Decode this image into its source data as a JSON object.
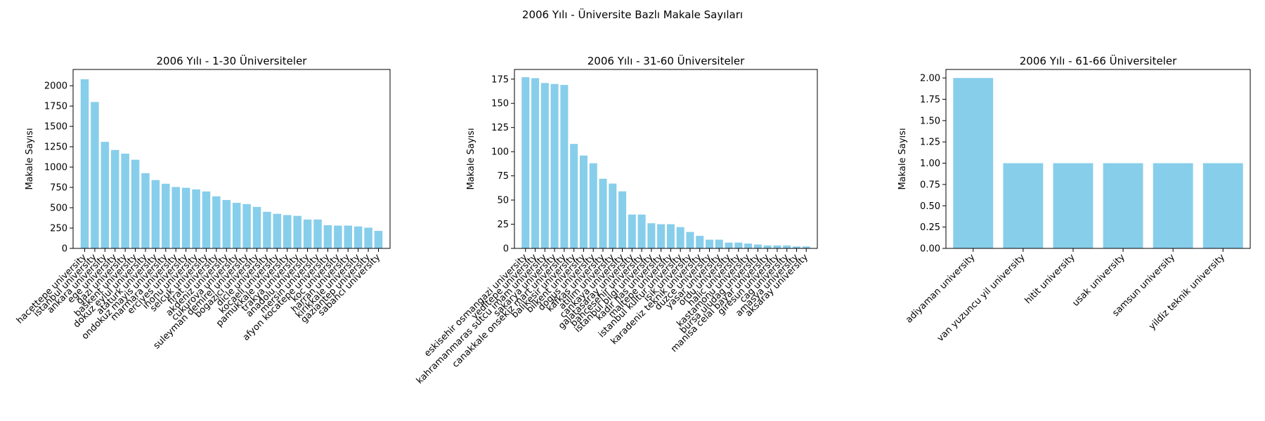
{
  "figure": {
    "suptitle": "2006 Yılı - Üniversite Bazlı Makale Sayıları"
  },
  "style": {
    "bar_color": "#87ceeb",
    "axis_color": "#000000",
    "background": "#ffffff"
  },
  "chart_data": [
    {
      "type": "bar",
      "title": "2006 Yılı - 1-30 Üniversiteler",
      "xlabel": "",
      "ylabel": "Makale Sayısı",
      "ylim": [
        0,
        2200
      ],
      "yticks": [
        0,
        250,
        500,
        750,
        1000,
        1250,
        1500,
        1750,
        2000
      ],
      "ytick_labels": [
        "0",
        "250",
        "500",
        "750",
        "1000",
        "1250",
        "1500",
        "1750",
        "2000"
      ],
      "grid": false,
      "categories": [
        "hacettepe university",
        "istanbul university",
        "ankara university",
        "ege university",
        "gazi university",
        "baskent university",
        "dokuz eylul university",
        "ataturk university",
        "ondokuz mayis university",
        "marmara university",
        "erciyes university",
        "inonu university",
        "selcuk university",
        "firat university",
        "akdeniz university",
        "cukurova university",
        "suleyman demirel university",
        "bogazici university",
        "dicle university",
        "kocaeli university",
        "pamukkale university",
        "trakya university",
        "anadolu university",
        "mersin university",
        "afyon kocatepe university",
        "koc university",
        "harran university",
        "kirikkale university",
        "gaziantep university",
        "sabanci university"
      ],
      "values": [
        2080,
        1800,
        1310,
        1210,
        1165,
        1090,
        925,
        840,
        795,
        755,
        745,
        725,
        700,
        640,
        595,
        560,
        545,
        510,
        450,
        425,
        410,
        400,
        355,
        355,
        285,
        280,
        280,
        270,
        255,
        215
      ]
    },
    {
      "type": "bar",
      "title": "2006 Yılı - 31-60 Üniversiteler",
      "xlabel": "",
      "ylabel": "Makale Sayısı",
      "ylim": [
        0,
        185
      ],
      "yticks": [
        0,
        25,
        50,
        75,
        100,
        125,
        150,
        175
      ],
      "ytick_labels": [
        "0",
        "25",
        "50",
        "75",
        "100",
        "125",
        "150",
        "175"
      ],
      "grid": false,
      "categories": [
        "eskisehir osmangazi university",
        "yeditepe university",
        "kahramanmaras sutcu imam university",
        "sakarya university",
        "canakkale onsekiz mart university",
        "balikesir university",
        "bilkent university",
        "dogus university",
        "kafkas university",
        "atilim university",
        "cankaya university",
        "galatasaray university",
        "bahcesehir university",
        "istanbul bilgi university",
        "kadir has university",
        "maltepe university",
        "istanbul kultur university",
        "isik university",
        "karadeniz teknik university",
        "duzce university",
        "yasar university",
        "ordu university",
        "halic university",
        "kastamonu university",
        "bursa uludag university",
        "manisa celal bayar university",
        "giresun university",
        "cag university",
        "amasya university",
        "aksaray university"
      ],
      "values": [
        177,
        176,
        171,
        170,
        169,
        108,
        96,
        88,
        72,
        67,
        59,
        35,
        35,
        26,
        25,
        25,
        22,
        17,
        13,
        9,
        9,
        6,
        6,
        5,
        4,
        3,
        3,
        3,
        2,
        2
      ]
    },
    {
      "type": "bar",
      "title": "2006 Yılı - 61-66 Üniversiteler",
      "xlabel": "",
      "ylabel": "Makale Sayısı",
      "ylim": [
        0,
        2.1
      ],
      "yticks": [
        0,
        0.25,
        0.5,
        0.75,
        1.0,
        1.25,
        1.5,
        1.75,
        2.0
      ],
      "ytick_labels": [
        "0.00",
        "0.25",
        "0.50",
        "0.75",
        "1.00",
        "1.25",
        "1.50",
        "1.75",
        "2.00"
      ],
      "grid": false,
      "categories": [
        "adiyaman university",
        "van yuzuncu yil university",
        "hitit university",
        "usak university",
        "samsun university",
        "yildiz teknik university"
      ],
      "values": [
        2,
        1,
        1,
        1,
        1,
        1
      ]
    }
  ]
}
